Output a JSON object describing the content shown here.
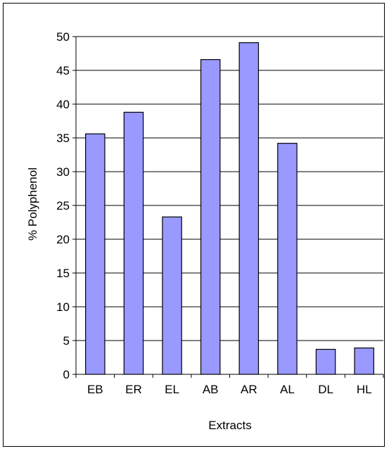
{
  "chart_data": {
    "type": "bar",
    "categories": [
      "EB",
      "ER",
      "EL",
      "AB",
      "AR",
      "AL",
      "DL",
      "HL"
    ],
    "values": [
      35.6,
      38.8,
      23.3,
      46.6,
      49.1,
      34.2,
      3.7,
      3.9
    ],
    "xlabel": "Extracts",
    "ylabel": "% Polyphenol",
    "ylim": [
      0,
      50
    ],
    "yticks": [
      0,
      5,
      10,
      15,
      20,
      25,
      30,
      35,
      40,
      45,
      50
    ],
    "grid": true,
    "colors": {
      "bar_fill": "#9999ff",
      "bar_stroke": "#000000",
      "grid": "#000000"
    }
  }
}
